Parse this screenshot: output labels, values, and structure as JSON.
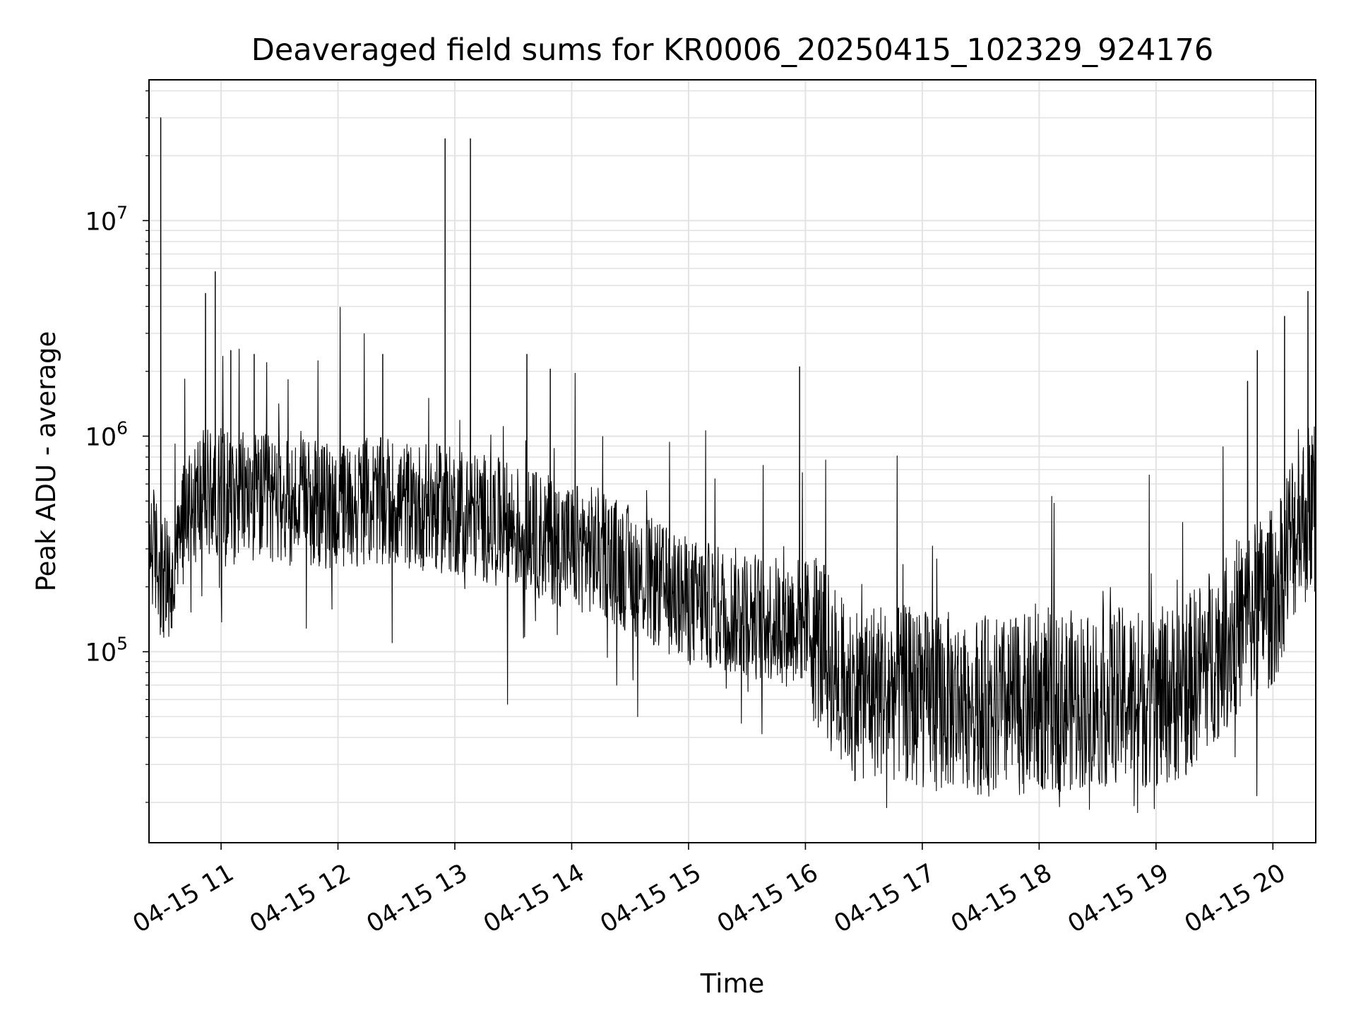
{
  "chart_data": {
    "type": "line",
    "title": "Deaveraged field sums for KR0006_20250415_102329_924176",
    "xlabel": "Time",
    "ylabel": "Peak ADU - average",
    "yscale": "log",
    "ylim": [
      13000,
      45000000
    ],
    "xlim": [
      "2025-04-15 10:23",
      "2025-04-15 20:22"
    ],
    "grid": "on",
    "line_color": "#000000",
    "x_ticks": [
      {
        "x": "2025-04-15 11:00",
        "label": "04-15 11"
      },
      {
        "x": "2025-04-15 12:00",
        "label": "04-15 12"
      },
      {
        "x": "2025-04-15 13:00",
        "label": "04-15 13"
      },
      {
        "x": "2025-04-15 14:00",
        "label": "04-15 14"
      },
      {
        "x": "2025-04-15 15:00",
        "label": "04-15 15"
      },
      {
        "x": "2025-04-15 16:00",
        "label": "04-15 16"
      },
      {
        "x": "2025-04-15 17:00",
        "label": "04-15 17"
      },
      {
        "x": "2025-04-15 18:00",
        "label": "04-15 18"
      },
      {
        "x": "2025-04-15 19:00",
        "label": "04-15 19"
      },
      {
        "x": "2025-04-15 20:00",
        "label": "04-15 20"
      }
    ],
    "y_ticks": [
      {
        "value": 100000,
        "base": "10",
        "exp": "5"
      },
      {
        "value": 1000000,
        "base": "10",
        "exp": "6"
      },
      {
        "value": 10000000,
        "base": "10",
        "exp": "7"
      }
    ],
    "series": [
      {
        "x": [
          "2025-04-15 10:23",
          "2025-04-15 10:30",
          "2025-04-15 10:35",
          "2025-04-15 10:42",
          "2025-04-15 10:50",
          "2025-04-15 11:00",
          "2025-04-15 11:15",
          "2025-04-15 11:30",
          "2025-04-15 11:45",
          "2025-04-15 12:00",
          "2025-04-15 12:15",
          "2025-04-15 12:30",
          "2025-04-15 12:45",
          "2025-04-15 13:00",
          "2025-04-15 13:15",
          "2025-04-15 13:30",
          "2025-04-15 13:45",
          "2025-04-15 14:00",
          "2025-04-15 14:15",
          "2025-04-15 14:30",
          "2025-04-15 14:45",
          "2025-04-15 15:00",
          "2025-04-15 15:15",
          "2025-04-15 15:30",
          "2025-04-15 15:45",
          "2025-04-15 16:00",
          "2025-04-15 16:10",
          "2025-04-15 16:20",
          "2025-04-15 16:40",
          "2025-04-15 17:00",
          "2025-04-15 17:20",
          "2025-04-15 17:40",
          "2025-04-15 18:00",
          "2025-04-15 18:20",
          "2025-04-15 18:40",
          "2025-04-15 19:00",
          "2025-04-15 19:15",
          "2025-04-15 19:30",
          "2025-04-15 19:45",
          "2025-04-15 20:00",
          "2025-04-15 20:10",
          "2025-04-15 20:22"
        ],
        "y": [
          350000,
          220000,
          190000,
          500000,
          540000,
          560000,
          530000,
          500000,
          480000,
          470000,
          500000,
          490000,
          470000,
          450000,
          420000,
          380000,
          340000,
          310000,
          290000,
          240000,
          200000,
          170000,
          160000,
          150000,
          140000,
          140000,
          100000,
          65000,
          68000,
          60000,
          58000,
          55000,
          58000,
          60000,
          62000,
          60000,
          68000,
          100000,
          140000,
          180000,
          350000,
          500000
        ]
      }
    ],
    "spikes": [
      {
        "x": "2025-04-15 10:29",
        "y": 30000000
      },
      {
        "x": "2025-04-15 10:52",
        "y": 4600000
      },
      {
        "x": "2025-04-15 10:57",
        "y": 5800000
      },
      {
        "x": "2025-04-15 11:05",
        "y": 2500000
      },
      {
        "x": "2025-04-15 11:17",
        "y": 2400000
      },
      {
        "x": "2025-04-15 12:23",
        "y": 2400000
      },
      {
        "x": "2025-04-15 12:55",
        "y": 24000000
      },
      {
        "x": "2025-04-15 13:08",
        "y": 24000000
      },
      {
        "x": "2025-04-15 13:37",
        "y": 2400000
      },
      {
        "x": "2025-04-15 13:49",
        "y": 2050000
      },
      {
        "x": "2025-04-15 15:57",
        "y": 2100000
      },
      {
        "x": "2025-04-15 19:47",
        "y": 1800000
      },
      {
        "x": "2025-04-15 19:52",
        "y": 2500000
      },
      {
        "x": "2025-04-15 20:06",
        "y": 3600000
      },
      {
        "x": "2025-04-15 20:18",
        "y": 4700000
      }
    ]
  }
}
